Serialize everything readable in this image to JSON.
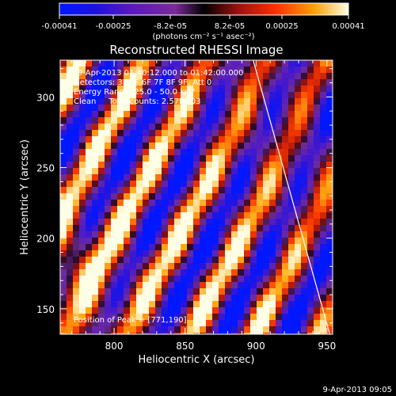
{
  "chart_data": {
    "type": "heatmap",
    "title": "Reconstructed RHESSI Image",
    "xlabel": "Heliocentric X (arcsec)",
    "ylabel": "Heliocentric Y (arcsec)",
    "xlim": [
      762,
      954
    ],
    "ylim": [
      132,
      326
    ],
    "x_ticks": [
      "800",
      "850",
      "900",
      "950"
    ],
    "y_ticks": [
      "150",
      "200",
      "250",
      "300"
    ],
    "x_tick_values": [
      800,
      850,
      900,
      950
    ],
    "y_tick_values": [
      150,
      200,
      250,
      300
    ],
    "colorbar": {
      "tick_labels": [
        "-0.00041",
        "-0.00025",
        "-8.2e-05",
        "8.2e-05",
        "0.00025",
        "0.00041"
      ],
      "min": -0.00041,
      "max": 0.00041,
      "units": "(photons cm⁻² s⁻¹ asec⁻²)"
    },
    "annotations": {
      "time_range": "9-Apr-2013 01:40:12.000 to 01:42:00.000",
      "detectors": "Detectors: 3F 5F 6F 7F 8F 9F, Att 0",
      "energy": "Energy Range: 25.0 - 50.0 keV",
      "clean": "Clean     Total counts: 2.57E+03",
      "peak": "Position of Peak = [771,190]"
    },
    "limb_line": {
      "x": [
        898,
        952
      ],
      "y": [
        326,
        132
      ]
    }
  },
  "footer": {
    "timestamp": "9-Apr-2013 09:05"
  }
}
